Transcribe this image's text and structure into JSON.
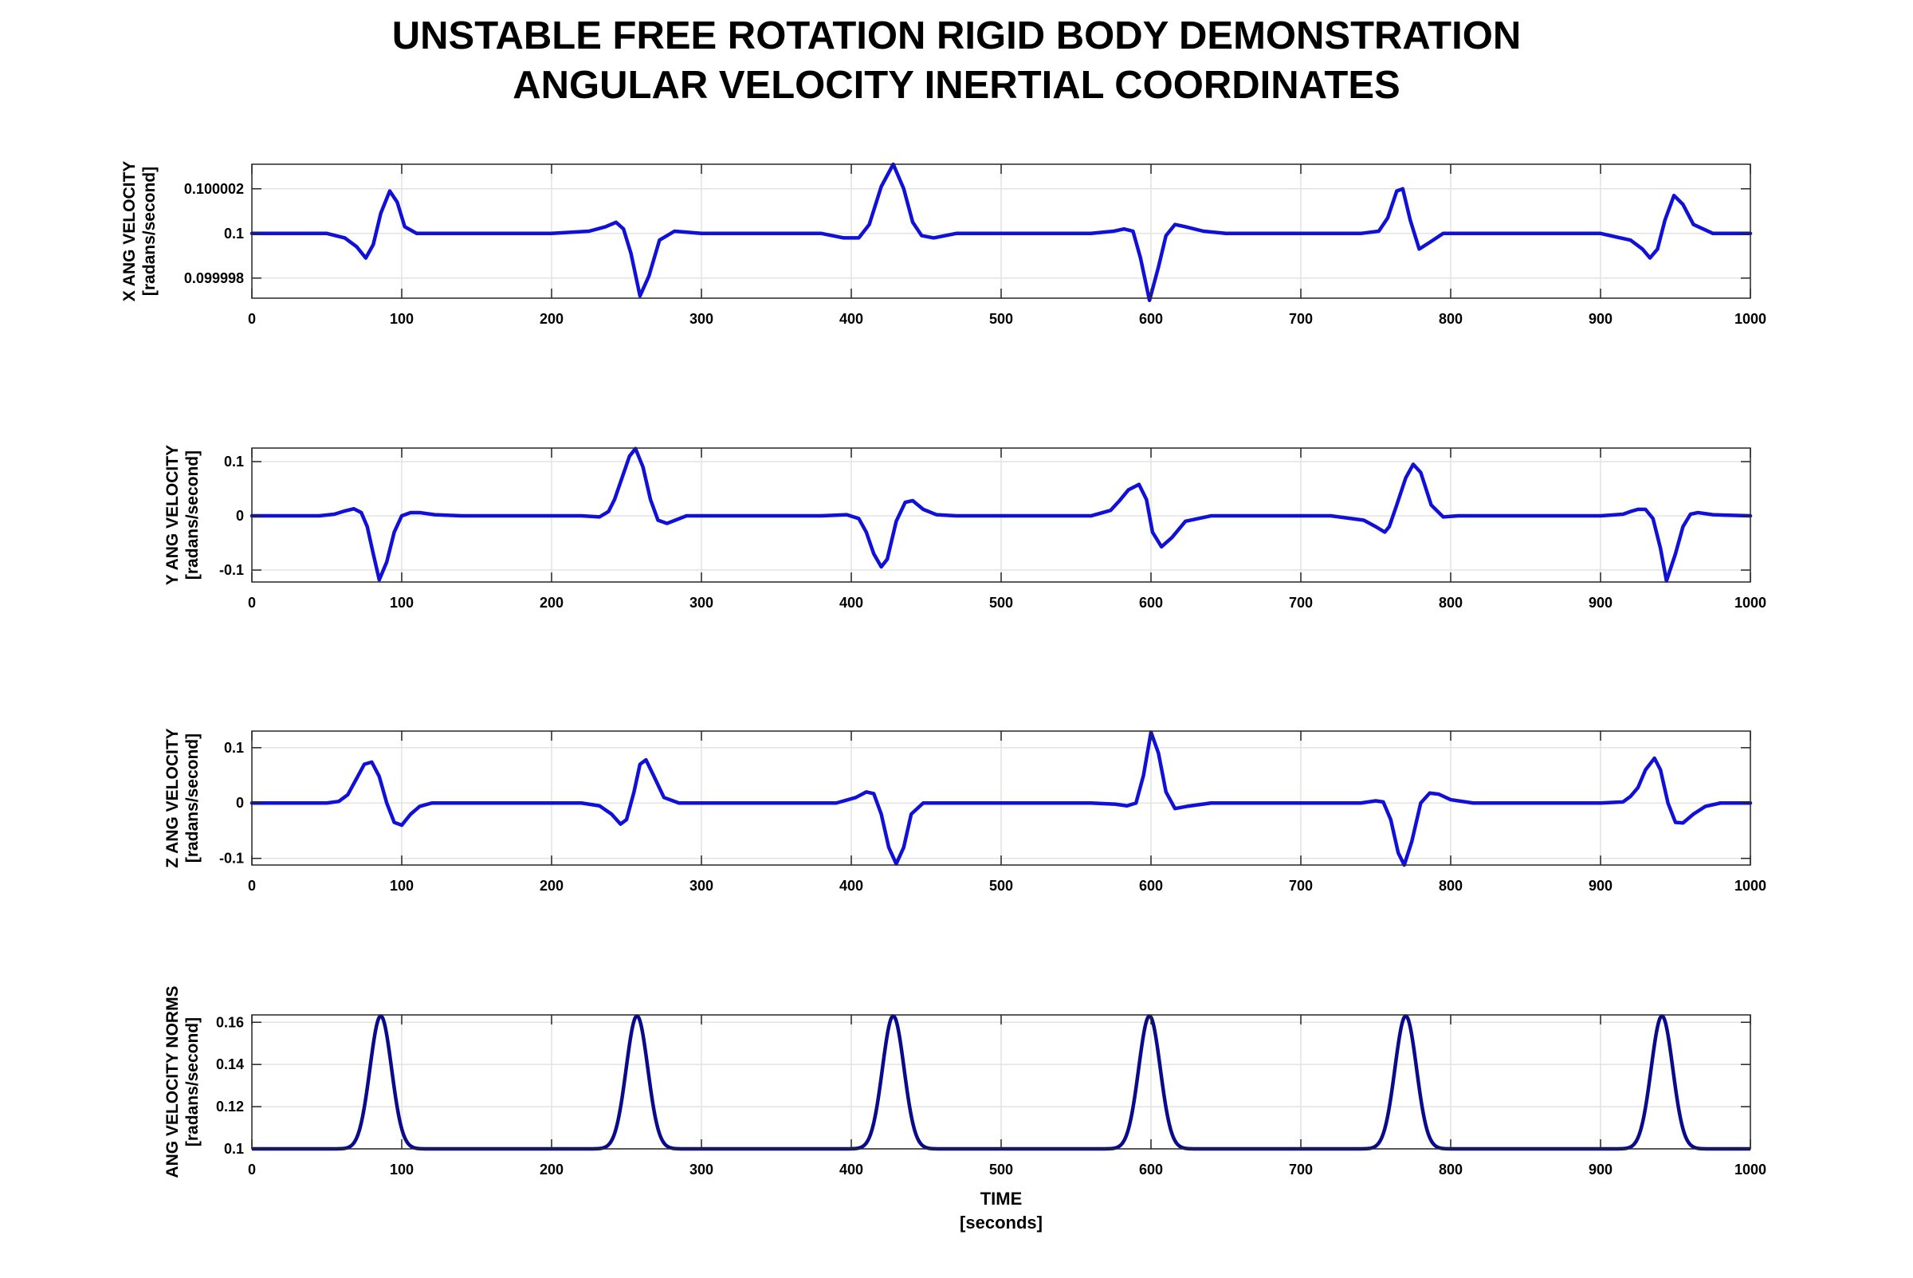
{
  "title_line1": "UNSTABLE FREE ROTATION RIGID BODY DEMONSTRATION",
  "title_line2": "ANGULAR VELOCITY    INERTIAL COORDINATES",
  "colors": {
    "series": "#1010d8",
    "norm": "#0a0a8c",
    "grid": "#e3e3e3",
    "axes": "#262626"
  },
  "chart_data": [
    {
      "type": "line",
      "ylabel": "X ANG VELOCITY",
      "yunit": "[radans/second]",
      "xlim": [
        0,
        1000
      ],
      "ylim": [
        0.0999971,
        0.1000031
      ],
      "xticks": [
        0,
        100,
        200,
        300,
        400,
        500,
        600,
        700,
        800,
        900,
        1000
      ],
      "yticks": [
        0.099998,
        0.1,
        0.100002
      ],
      "ytick_labels": [
        "0.099998",
        "0.1",
        "0.100002"
      ],
      "grid": true,
      "series": [
        {
          "x": [
            0,
            50,
            62,
            70,
            76,
            81,
            86,
            92,
            97,
            102,
            110,
            120,
            200,
            225,
            236,
            243,
            248,
            253,
            259,
            265,
            272,
            282,
            300,
            380,
            395,
            405,
            412,
            420,
            428,
            435,
            441,
            447,
            455,
            470,
            560,
            575,
            582,
            588,
            593,
            599,
            605,
            610,
            616,
            623,
            635,
            650,
            740,
            752,
            758,
            764,
            768,
            773,
            779,
            786,
            795,
            810,
            900,
            920,
            928,
            933,
            938,
            943,
            949,
            955,
            962,
            975,
            1000
          ],
          "y": [
            0.1,
            0.1,
            0.0999998,
            0.0999994,
            0.0999989,
            0.0999995,
            0.1000009,
            0.1000019,
            0.1000014,
            0.1000003,
            0.1,
            0.1,
            0.1,
            0.1000001,
            0.1000003,
            0.1000005,
            0.1000002,
            0.0999991,
            0.0999972,
            0.0999981,
            0.0999997,
            0.1000001,
            0.1,
            0.1,
            0.0999998,
            0.0999998,
            0.1000004,
            0.1000021,
            0.1000031,
            0.100002,
            0.1000005,
            0.0999999,
            0.0999998,
            0.1,
            0.1,
            0.1000001,
            0.1000002,
            0.1000001,
            0.0999989,
            0.099997,
            0.0999985,
            0.0999999,
            0.1000004,
            0.1000003,
            0.1000001,
            0.1,
            0.1,
            0.1000001,
            0.1000007,
            0.1000019,
            0.100002,
            0.1000006,
            0.0999993,
            0.0999996,
            0.1,
            0.1,
            0.1,
            0.0999997,
            0.0999993,
            0.0999989,
            0.0999993,
            0.1000006,
            0.1000017,
            0.1000013,
            0.1000004,
            0.1,
            0.1
          ]
        }
      ]
    },
    {
      "type": "line",
      "ylabel": "Y ANG VELOCITY",
      "yunit": "[radans/second]",
      "xlim": [
        0,
        1000
      ],
      "ylim": [
        -0.122,
        0.125
      ],
      "xticks": [
        0,
        100,
        200,
        300,
        400,
        500,
        600,
        700,
        800,
        900,
        1000
      ],
      "yticks": [
        -0.1,
        0,
        0.1
      ],
      "ytick_labels": [
        "-0.1",
        "0",
        "0.1"
      ],
      "grid": true,
      "series": [
        {
          "x": [
            0,
            45,
            55,
            62,
            68,
            73,
            77,
            81,
            85,
            90,
            95,
            100,
            106,
            112,
            122,
            140,
            220,
            232,
            238,
            242,
            247,
            252,
            256,
            261,
            266,
            271,
            277,
            290,
            380,
            397,
            405,
            410,
            415,
            420,
            424,
            430,
            436,
            441,
            448,
            457,
            470,
            560,
            573,
            579,
            585,
            592,
            597,
            601,
            607,
            614,
            623,
            640,
            720,
            742,
            750,
            756,
            759,
            764,
            770,
            775,
            780,
            787,
            795,
            805,
            900,
            915,
            920,
            925,
            930,
            935,
            940,
            944,
            950,
            955,
            960,
            965,
            975,
            1000
          ],
          "y": [
            0,
            0,
            0.003,
            0.009,
            0.013,
            0.006,
            -0.02,
            -0.07,
            -0.118,
            -0.085,
            -0.03,
            0.0,
            0.006,
            0.006,
            0.002,
            0,
            0,
            -0.002,
            0.008,
            0.03,
            0.07,
            0.11,
            0.124,
            0.09,
            0.03,
            -0.008,
            -0.014,
            0,
            0,
            0.002,
            -0.005,
            -0.03,
            -0.07,
            -0.094,
            -0.08,
            -0.01,
            0.025,
            0.028,
            0.012,
            0.002,
            0,
            0,
            0.01,
            0.028,
            0.048,
            0.058,
            0.03,
            -0.03,
            -0.057,
            -0.04,
            -0.01,
            0,
            0,
            -0.008,
            -0.02,
            -0.03,
            -0.02,
            0.02,
            0.07,
            0.095,
            0.08,
            0.02,
            -0.002,
            0,
            0,
            0.003,
            0.008,
            0.012,
            0.012,
            -0.005,
            -0.06,
            -0.12,
            -0.07,
            -0.02,
            0.003,
            0.006,
            0.002,
            0
          ]
        }
      ]
    },
    {
      "type": "line",
      "ylabel": "Z ANG VELOCITY",
      "yunit": "[radans/second]",
      "xlim": [
        0,
        1000
      ],
      "ylim": [
        -0.112,
        0.13
      ],
      "xticks": [
        0,
        100,
        200,
        300,
        400,
        500,
        600,
        700,
        800,
        900,
        1000
      ],
      "yticks": [
        -0.1,
        0,
        0.1
      ],
      "ytick_labels": [
        "-0.1",
        "0",
        "0.1"
      ],
      "grid": true,
      "series": [
        {
          "x": [
            0,
            50,
            58,
            64,
            70,
            75,
            80,
            85,
            90,
            95,
            100,
            106,
            112,
            120,
            140,
            220,
            232,
            240,
            246,
            250,
            255,
            259,
            263,
            268,
            275,
            285,
            300,
            390,
            403,
            410,
            415,
            420,
            425,
            430,
            435,
            440,
            448,
            460,
            560,
            576,
            584,
            590,
            595,
            600,
            605,
            610,
            616,
            624,
            640,
            740,
            750,
            755,
            760,
            765,
            769,
            774,
            780,
            786,
            792,
            800,
            815,
            900,
            915,
            920,
            925,
            930,
            936,
            940,
            945,
            950,
            955,
            962,
            970,
            980,
            1000
          ],
          "y": [
            0,
            0,
            0.003,
            0.015,
            0.045,
            0.07,
            0.074,
            0.048,
            0.0,
            -0.035,
            -0.04,
            -0.02,
            -0.006,
            0.0,
            0,
            0,
            -0.005,
            -0.02,
            -0.038,
            -0.03,
            0.02,
            0.07,
            0.078,
            0.05,
            0.01,
            0.0,
            0,
            0,
            0.01,
            0.02,
            0.017,
            -0.02,
            -0.08,
            -0.11,
            -0.08,
            -0.02,
            0.0,
            0,
            0,
            -0.002,
            -0.005,
            0.0,
            0.05,
            0.128,
            0.09,
            0.02,
            -0.01,
            -0.006,
            0,
            0,
            0.004,
            0.002,
            -0.03,
            -0.09,
            -0.112,
            -0.07,
            0.0,
            0.018,
            0.016,
            0.006,
            0,
            0,
            0.002,
            0.012,
            0.028,
            0.06,
            0.081,
            0.06,
            0.0,
            -0.035,
            -0.036,
            -0.02,
            -0.006,
            0,
            0
          ]
        }
      ]
    },
    {
      "type": "line",
      "ylabel": "ANG VELOCITY NORMS",
      "yunit": "[radans/second]",
      "xlim": [
        0,
        1000
      ],
      "ylim": [
        0.1,
        0.1635
      ],
      "xticks": [
        0,
        100,
        200,
        300,
        400,
        500,
        600,
        700,
        800,
        900,
        1000
      ],
      "xtick_labels": [
        "0",
        "100",
        "200",
        "300",
        "400",
        "500",
        "600",
        "700",
        "800",
        "900",
        "1000"
      ],
      "yticks": [
        0.1,
        0.12,
        0.14,
        0.16
      ],
      "ytick_labels": [
        "0.1",
        "0.12",
        "0.14",
        "0.16"
      ],
      "xlabel": "TIME",
      "xunit": "[seconds]",
      "grid": true,
      "peaks": [
        86,
        257,
        428,
        599,
        770,
        941
      ],
      "peak_value": 0.163,
      "base_value": 0.1
    }
  ]
}
